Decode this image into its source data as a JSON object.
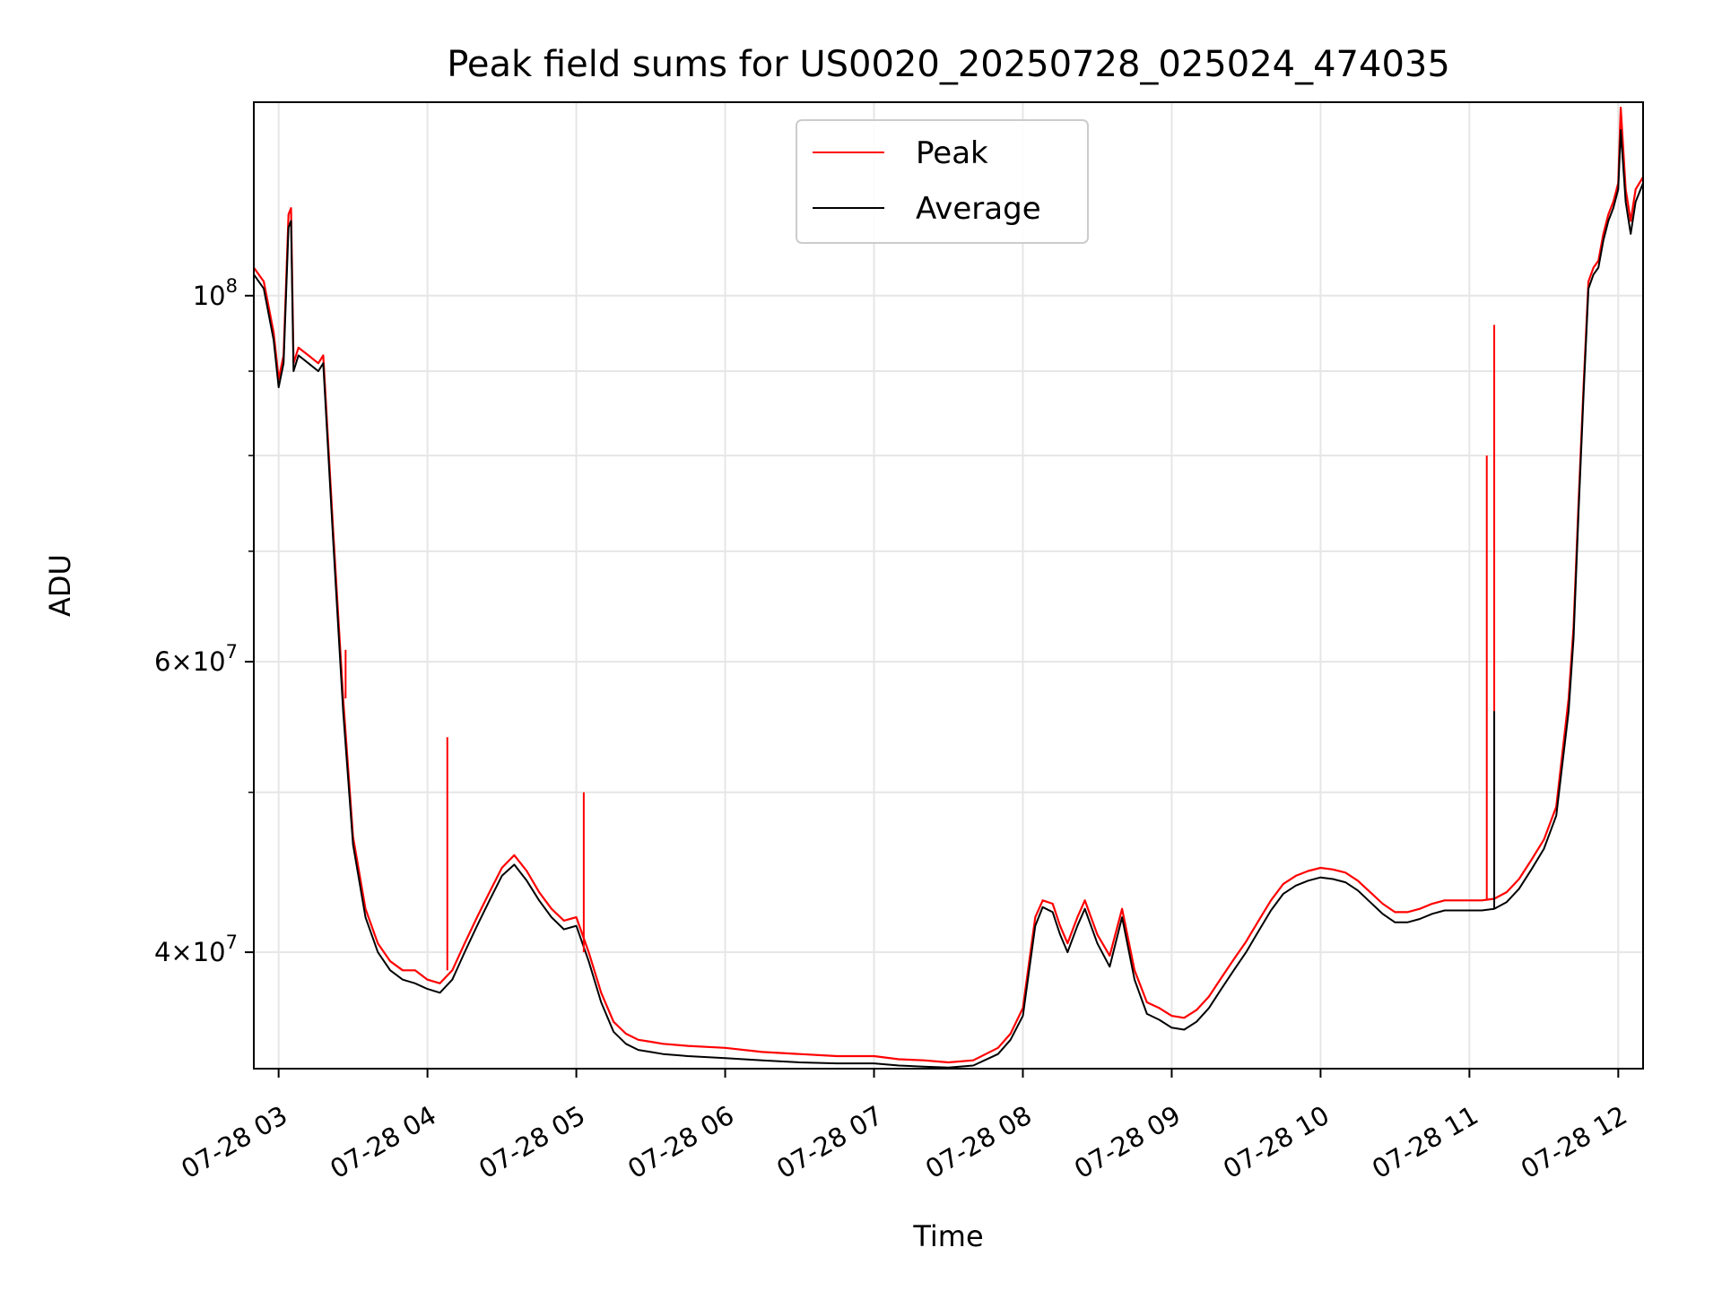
{
  "chart_data": {
    "type": "line",
    "title": "Peak field sums for US0020_20250728_025024_474035",
    "xlabel": "Time",
    "ylabel": "ADU",
    "yscale": "log",
    "grid": true,
    "legend": "top-center",
    "x_range": [
      "07-28 02:50",
      "07-28 12:10"
    ],
    "ylim": [
      34000000,
      131000000
    ],
    "x_ticks": [
      "07-28 03",
      "07-28 04",
      "07-28 05",
      "07-28 06",
      "07-28 07",
      "07-28 08",
      "07-28 09",
      "07-28 10",
      "07-28 11",
      "07-28 12"
    ],
    "y_ticks": [
      {
        "value": 40000000,
        "base": "4",
        "exp": "7"
      },
      {
        "value": 60000000,
        "base": "6",
        "exp": "7"
      },
      {
        "value": 100000000,
        "base": "",
        "exp": "8"
      }
    ],
    "series": [
      {
        "name": "Peak",
        "color": "#ff0000",
        "x": [
          "07-28 02:50",
          "07-28 02:54",
          "07-28 02:58",
          "07-28 03:00",
          "07-28 03:02",
          "07-28 03:04",
          "07-28 03:05",
          "07-28 03:06",
          "07-28 03:08",
          "07-28 03:12",
          "07-28 03:16",
          "07-28 03:18",
          "07-28 03:22",
          "07-28 03:26",
          "07-28 03:30",
          "07-28 03:35",
          "07-28 03:40",
          "07-28 03:45",
          "07-28 03:50",
          "07-28 03:55",
          "07-28 04:00",
          "07-28 04:05",
          "07-28 04:10",
          "07-28 04:15",
          "07-28 04:20",
          "07-28 04:25",
          "07-28 04:30",
          "07-28 04:35",
          "07-28 04:40",
          "07-28 04:45",
          "07-28 04:50",
          "07-28 04:55",
          "07-28 05:00",
          "07-28 05:05",
          "07-28 05:10",
          "07-28 05:15",
          "07-28 05:20",
          "07-28 05:25",
          "07-28 05:30",
          "07-28 05:35",
          "07-28 05:45",
          "07-28 06:00",
          "07-28 06:15",
          "07-28 06:30",
          "07-28 06:45",
          "07-28 07:00",
          "07-28 07:10",
          "07-28 07:20",
          "07-28 07:30",
          "07-28 07:40",
          "07-28 07:50",
          "07-28 07:55",
          "07-28 08:00",
          "07-28 08:05",
          "07-28 08:08",
          "07-28 08:12",
          "07-28 08:15",
          "07-28 08:18",
          "07-28 08:22",
          "07-28 08:25",
          "07-28 08:30",
          "07-28 08:35",
          "07-28 08:40",
          "07-28 08:45",
          "07-28 08:50",
          "07-28 08:55",
          "07-28 09:00",
          "07-28 09:05",
          "07-28 09:10",
          "07-28 09:15",
          "07-28 09:20",
          "07-28 09:25",
          "07-28 09:30",
          "07-28 09:35",
          "07-28 09:40",
          "07-28 09:45",
          "07-28 09:50",
          "07-28 09:55",
          "07-28 10:00",
          "07-28 10:05",
          "07-28 10:10",
          "07-28 10:15",
          "07-28 10:20",
          "07-28 10:25",
          "07-28 10:30",
          "07-28 10:35",
          "07-28 10:40",
          "07-28 10:45",
          "07-28 10:50",
          "07-28 10:55",
          "07-28 11:00",
          "07-28 11:05",
          "07-28 11:10",
          "07-28 11:15",
          "07-28 11:20",
          "07-28 11:25",
          "07-28 11:30",
          "07-28 11:35",
          "07-28 11:40",
          "07-28 11:42",
          "07-28 11:44",
          "07-28 11:46",
          "07-28 11:48",
          "07-28 11:50",
          "07-28 11:52",
          "07-28 11:54",
          "07-28 11:56",
          "07-28 11:58",
          "07-28 12:00",
          "07-28 12:01",
          "07-28 12:03",
          "07-28 12:05",
          "07-28 12:07",
          "07-28 12:10"
        ],
        "values": [
          104000000,
          102000000,
          95000000,
          89000000,
          92000000,
          112000000,
          113000000,
          91000000,
          93000000,
          92000000,
          91000000,
          92000000,
          72000000,
          57000000,
          47000000,
          42500000,
          40500000,
          39500000,
          39000000,
          39000000,
          38500000,
          38300000,
          39000000,
          40500000,
          42000000,
          43500000,
          45000000,
          45800000,
          44800000,
          43500000,
          42500000,
          41800000,
          42000000,
          40000000,
          37800000,
          36300000,
          35700000,
          35400000,
          35300000,
          35200000,
          35100000,
          35000000,
          34800000,
          34700000,
          34600000,
          34600000,
          34450000,
          34400000,
          34300000,
          34400000,
          35000000,
          35700000,
          37000000,
          42000000,
          43000000,
          42800000,
          41500000,
          40500000,
          42000000,
          43000000,
          41000000,
          39800000,
          42500000,
          39000000,
          37300000,
          37000000,
          36600000,
          36500000,
          36900000,
          37600000,
          38600000,
          39600000,
          40600000,
          41800000,
          43000000,
          44000000,
          44500000,
          44800000,
          45000000,
          44900000,
          44700000,
          44200000,
          43500000,
          42800000,
          42300000,
          42300000,
          42500000,
          42800000,
          43000000,
          43000000,
          43000000,
          43000000,
          43100000,
          43500000,
          44300000,
          45500000,
          46800000,
          49000000,
          57000000,
          63000000,
          75000000,
          88000000,
          102000000,
          104000000,
          105000000,
          109000000,
          112000000,
          114000000,
          117000000,
          130000000,
          116000000,
          111000000,
          116000000,
          118000000
        ]
      },
      {
        "name": "Average",
        "color": "#000000",
        "x": [
          "07-28 02:50",
          "07-28 02:54",
          "07-28 02:58",
          "07-28 03:00",
          "07-28 03:02",
          "07-28 03:04",
          "07-28 03:05",
          "07-28 03:06",
          "07-28 03:08",
          "07-28 03:12",
          "07-28 03:16",
          "07-28 03:18",
          "07-28 03:22",
          "07-28 03:26",
          "07-28 03:30",
          "07-28 03:35",
          "07-28 03:40",
          "07-28 03:45",
          "07-28 03:50",
          "07-28 03:55",
          "07-28 04:00",
          "07-28 04:05",
          "07-28 04:10",
          "07-28 04:15",
          "07-28 04:20",
          "07-28 04:25",
          "07-28 04:30",
          "07-28 04:35",
          "07-28 04:40",
          "07-28 04:45",
          "07-28 04:50",
          "07-28 04:55",
          "07-28 05:00",
          "07-28 05:05",
          "07-28 05:10",
          "07-28 05:15",
          "07-28 05:20",
          "07-28 05:25",
          "07-28 05:30",
          "07-28 05:35",
          "07-28 05:45",
          "07-28 06:00",
          "07-28 06:15",
          "07-28 06:30",
          "07-28 06:45",
          "07-28 07:00",
          "07-28 07:10",
          "07-28 07:20",
          "07-28 07:30",
          "07-28 07:40",
          "07-28 07:50",
          "07-28 07:55",
          "07-28 08:00",
          "07-28 08:05",
          "07-28 08:08",
          "07-28 08:12",
          "07-28 08:15",
          "07-28 08:18",
          "07-28 08:22",
          "07-28 08:25",
          "07-28 08:30",
          "07-28 08:35",
          "07-28 08:40",
          "07-28 08:45",
          "07-28 08:50",
          "07-28 08:55",
          "07-28 09:00",
          "07-28 09:05",
          "07-28 09:10",
          "07-28 09:15",
          "07-28 09:20",
          "07-28 09:25",
          "07-28 09:30",
          "07-28 09:35",
          "07-28 09:40",
          "07-28 09:45",
          "07-28 09:50",
          "07-28 09:55",
          "07-28 10:00",
          "07-28 10:05",
          "07-28 10:10",
          "07-28 10:15",
          "07-28 10:20",
          "07-28 10:25",
          "07-28 10:30",
          "07-28 10:35",
          "07-28 10:40",
          "07-28 10:45",
          "07-28 10:50",
          "07-28 10:55",
          "07-28 11:00",
          "07-28 11:05",
          "07-28 11:10",
          "07-28 11:15",
          "07-28 11:20",
          "07-28 11:25",
          "07-28 11:30",
          "07-28 11:35",
          "07-28 11:40",
          "07-28 11:42",
          "07-28 11:44",
          "07-28 11:46",
          "07-28 11:48",
          "07-28 11:50",
          "07-28 11:52",
          "07-28 11:54",
          "07-28 11:56",
          "07-28 11:58",
          "07-28 12:00",
          "07-28 12:01",
          "07-28 12:03",
          "07-28 12:05",
          "07-28 12:07",
          "07-28 12:10"
        ],
        "values": [
          103000000,
          101000000,
          94000000,
          88000000,
          91000000,
          110000000,
          111000000,
          90000000,
          92000000,
          91000000,
          90000000,
          91000000,
          71000000,
          56000000,
          46500000,
          42000000,
          40000000,
          39000000,
          38500000,
          38300000,
          38000000,
          37800000,
          38500000,
          40000000,
          41500000,
          43000000,
          44500000,
          45200000,
          44200000,
          43000000,
          42000000,
          41300000,
          41500000,
          39500000,
          37300000,
          35800000,
          35200000,
          34900000,
          34800000,
          34700000,
          34600000,
          34500000,
          34400000,
          34300000,
          34250000,
          34250000,
          34150000,
          34100000,
          34050000,
          34150000,
          34700000,
          35400000,
          36600000,
          41500000,
          42600000,
          42300000,
          41000000,
          40000000,
          41500000,
          42500000,
          40500000,
          39200000,
          42000000,
          38500000,
          36700000,
          36400000,
          36000000,
          35900000,
          36300000,
          37000000,
          38000000,
          39000000,
          40000000,
          41200000,
          42400000,
          43400000,
          43900000,
          44200000,
          44400000,
          44300000,
          44100000,
          43600000,
          42900000,
          42200000,
          41700000,
          41700000,
          41900000,
          42200000,
          42400000,
          42400000,
          42400000,
          42400000,
          42500000,
          42900000,
          43700000,
          44900000,
          46200000,
          48400000,
          56000000,
          62000000,
          74000000,
          87000000,
          101000000,
          103000000,
          104000000,
          108000000,
          111000000,
          113000000,
          116000000,
          126000000,
          114000000,
          109000000,
          114000000,
          117000000
        ]
      }
    ],
    "spikes": [
      {
        "series": "Peak",
        "x": "07-28 03:27",
        "value": 61000000
      },
      {
        "series": "Peak",
        "x": "07-28 04:08",
        "value": 54000000
      },
      {
        "series": "Peak",
        "x": "07-28 05:03",
        "value": 50000000
      },
      {
        "series": "Peak",
        "x": "07-28 11:07",
        "value": 80000000
      },
      {
        "series": "Peak",
        "x": "07-28 11:10",
        "value": 96000000
      },
      {
        "series": "Average",
        "x": "07-28 11:10",
        "value": 56000000
      }
    ]
  }
}
